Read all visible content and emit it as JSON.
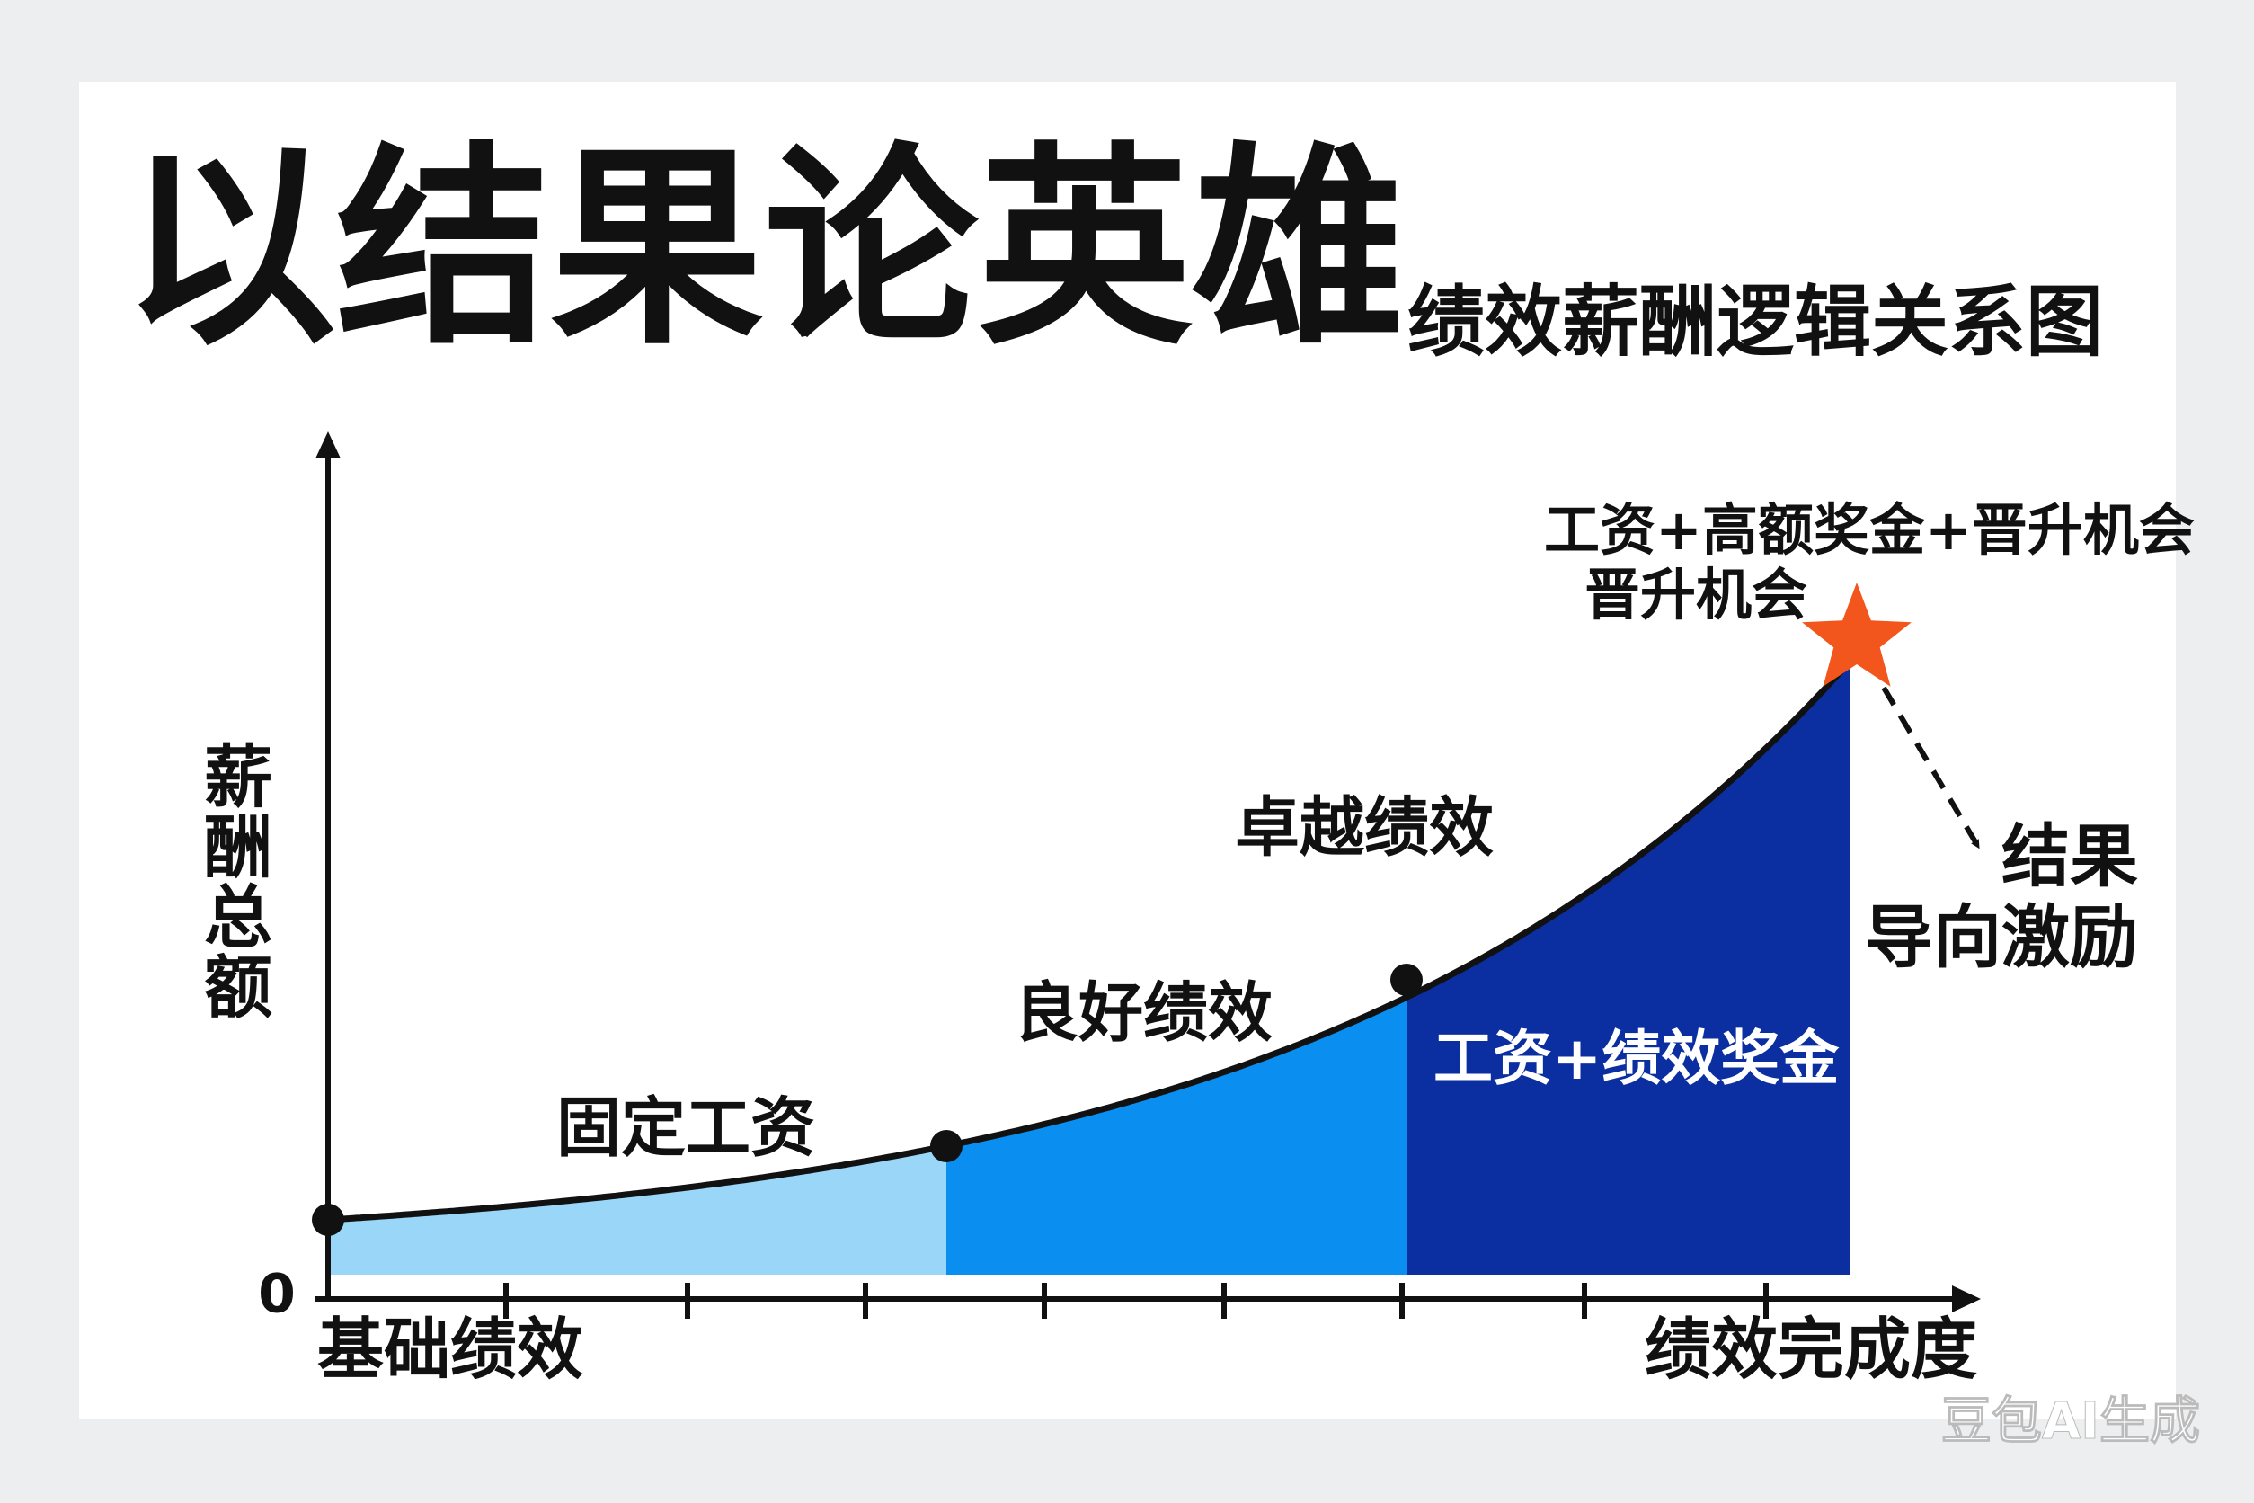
{
  "header": {
    "title": "以结果论英雄",
    "subtitle": "绩效薪酬逻辑关系图"
  },
  "axes": {
    "y_label": "薪酬总额",
    "origin": "0",
    "x_start": "基础绩效",
    "x_end": "绩效完成度"
  },
  "stages": [
    "固定工资",
    "良好绩效",
    "卓越绩效"
  ],
  "region_label": "工资+绩效奖金",
  "peak": {
    "line1": "工资+高额奖金+晋升机会",
    "line2": "晋升机会"
  },
  "result": {
    "line1": "结果",
    "line2": "导向激励"
  },
  "watermark": "豆包AI生成"
}
